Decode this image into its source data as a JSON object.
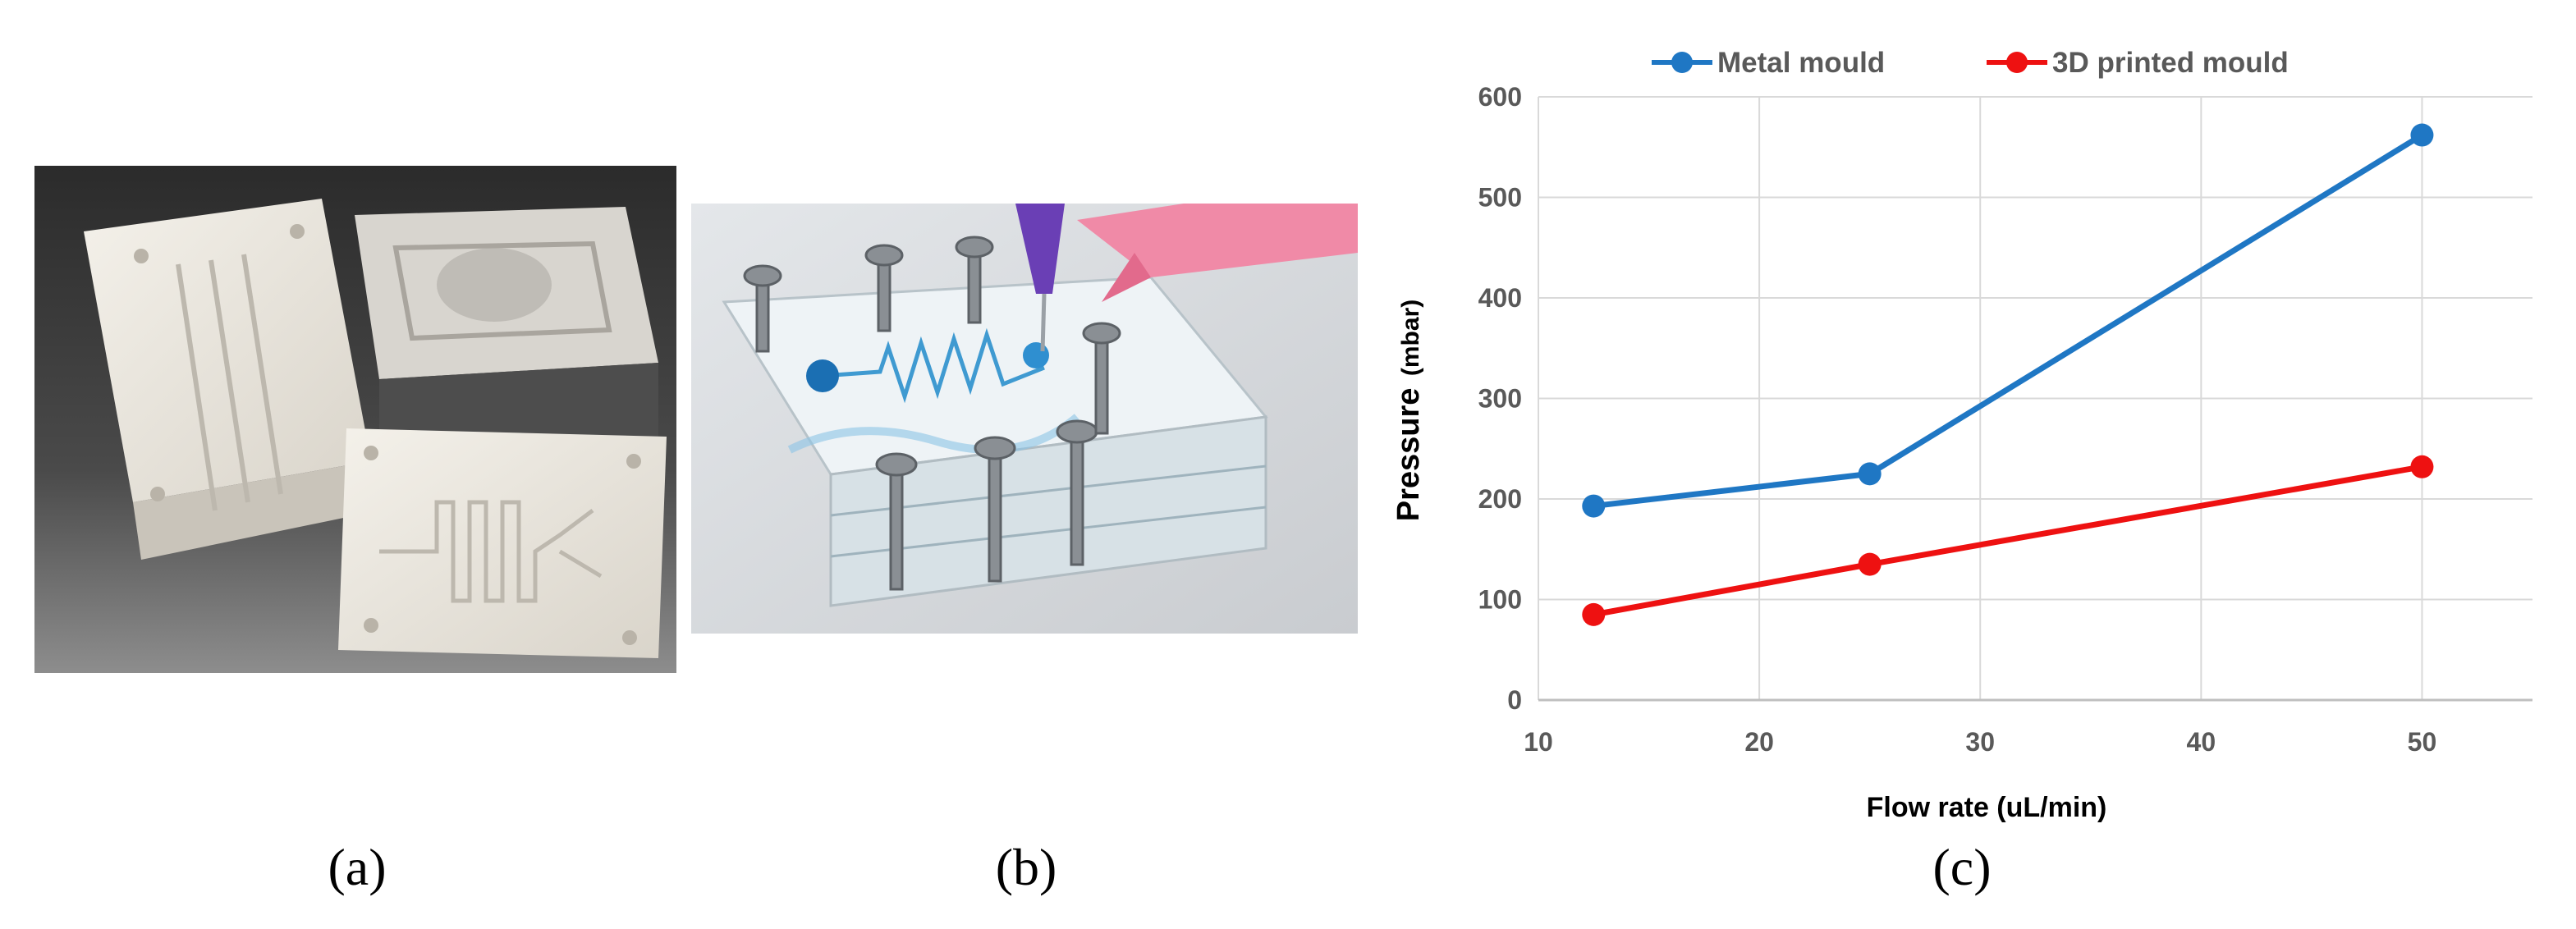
{
  "panels": {
    "a": {
      "label": "(a)"
    },
    "b": {
      "label": "(b)"
    },
    "c": {
      "label": "(c)"
    }
  },
  "chart_data": {
    "type": "line",
    "xlabel": "Flow rate (uL/min)",
    "ylabel_main": "Pressure",
    "ylabel_unit": "(mbar)",
    "xlim": [
      10,
      55
    ],
    "ylim": [
      0,
      600
    ],
    "xticks": [
      10,
      20,
      30,
      40,
      50
    ],
    "yticks": [
      0,
      100,
      200,
      300,
      400,
      500,
      600
    ],
    "grid": true,
    "legend_position": "top",
    "series": [
      {
        "name": "Metal mould",
        "color": "#1f77c4",
        "x": [
          12.5,
          25,
          50
        ],
        "y": [
          193,
          225,
          562
        ]
      },
      {
        "name": "3D printed mould",
        "color": "#ee1111",
        "x": [
          12.5,
          25,
          50
        ],
        "y": [
          85,
          135,
          232
        ]
      }
    ]
  }
}
